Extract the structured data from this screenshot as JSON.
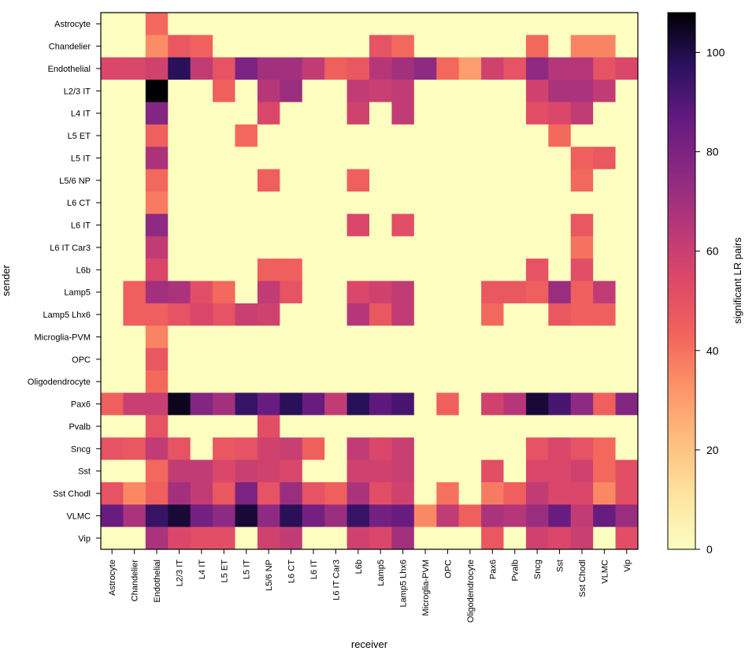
{
  "chart_data": {
    "type": "heatmap",
    "xlabel": "receiver",
    "ylabel": "sender",
    "colorbar_label": "significant LR pairs",
    "colorbar_ticks": [
      0,
      20,
      40,
      60,
      80,
      100
    ],
    "vmin": 0,
    "vmax": 108,
    "colormap": "magma_r",
    "columns": [
      "Astrocyte",
      "Chandelier",
      "Endothelial",
      "L2/3 IT",
      "L4 IT",
      "L5 ET",
      "L5 IT",
      "L5/6 NP",
      "L6 CT",
      "L6 IT",
      "L6 IT Car3",
      "L6b",
      "Lamp5",
      "Lamp5 Lhx6",
      "Microglia-PVM",
      "OPC",
      "Oligodendrocyte",
      "Pax6",
      "Pvalb",
      "Sncg",
      "Sst",
      "Sst Chodl",
      "VLMC",
      "Vip"
    ],
    "rows": [
      "Astrocyte",
      "Chandelier",
      "Endothelial",
      "L2/3 IT",
      "L4 IT",
      "L5 ET",
      "L5 IT",
      "L5/6 NP",
      "L6 CT",
      "L6 IT",
      "L6 IT Car3",
      "L6b",
      "Lamp5",
      "Lamp5 Lhx6",
      "Microglia-PVM",
      "OPC",
      "Oligodendrocyte",
      "Pax6",
      "Pvalb",
      "Sncg",
      "Sst",
      "Sst Chodl",
      "VLMC",
      "Vip"
    ],
    "values": [
      [
        0,
        0,
        42,
        0,
        0,
        0,
        0,
        0,
        0,
        0,
        0,
        0,
        0,
        0,
        0,
        0,
        0,
        0,
        0,
        0,
        0,
        0,
        0,
        0
      ],
      [
        0,
        0,
        34,
        48,
        44,
        0,
        0,
        0,
        0,
        0,
        0,
        0,
        50,
        42,
        0,
        0,
        0,
        0,
        0,
        42,
        0,
        36,
        36,
        0
      ],
      [
        55,
        55,
        58,
        98,
        62,
        50,
        80,
        70,
        70,
        62,
        45,
        48,
        65,
        70,
        75,
        42,
        30,
        58,
        50,
        75,
        65,
        65,
        50,
        55
      ],
      [
        0,
        0,
        108,
        0,
        0,
        45,
        0,
        65,
        72,
        0,
        0,
        62,
        60,
        62,
        0,
        0,
        0,
        0,
        0,
        58,
        68,
        68,
        62,
        0
      ],
      [
        0,
        0,
        78,
        0,
        0,
        0,
        0,
        55,
        0,
        0,
        0,
        58,
        0,
        62,
        0,
        0,
        0,
        0,
        0,
        52,
        55,
        62,
        0,
        0
      ],
      [
        0,
        0,
        45,
        0,
        0,
        0,
        42,
        0,
        0,
        0,
        0,
        0,
        0,
        0,
        0,
        0,
        0,
        0,
        0,
        0,
        42,
        0,
        0,
        0
      ],
      [
        0,
        0,
        68,
        0,
        0,
        0,
        0,
        0,
        0,
        0,
        0,
        0,
        0,
        0,
        0,
        0,
        0,
        0,
        0,
        0,
        0,
        45,
        48,
        0
      ],
      [
        0,
        0,
        42,
        0,
        0,
        0,
        0,
        45,
        0,
        0,
        0,
        45,
        0,
        0,
        0,
        0,
        0,
        0,
        0,
        0,
        0,
        42,
        0,
        0
      ],
      [
        0,
        0,
        38,
        0,
        0,
        0,
        0,
        0,
        0,
        0,
        0,
        0,
        0,
        0,
        0,
        0,
        0,
        0,
        0,
        0,
        0,
        0,
        0,
        0
      ],
      [
        0,
        0,
        75,
        0,
        0,
        0,
        0,
        0,
        0,
        0,
        0,
        55,
        0,
        52,
        0,
        0,
        0,
        0,
        0,
        0,
        0,
        48,
        0,
        0
      ],
      [
        0,
        0,
        62,
        0,
        0,
        0,
        0,
        0,
        0,
        0,
        0,
        0,
        0,
        0,
        0,
        0,
        0,
        0,
        0,
        0,
        0,
        40,
        0,
        0
      ],
      [
        0,
        0,
        55,
        0,
        0,
        0,
        0,
        45,
        45,
        0,
        0,
        0,
        0,
        0,
        0,
        0,
        0,
        0,
        0,
        50,
        0,
        52,
        0,
        0
      ],
      [
        0,
        45,
        70,
        68,
        52,
        42,
        0,
        62,
        50,
        0,
        0,
        55,
        58,
        62,
        0,
        0,
        0,
        48,
        48,
        45,
        72,
        45,
        62,
        0
      ],
      [
        0,
        45,
        45,
        50,
        55,
        50,
        60,
        58,
        0,
        0,
        0,
        65,
        48,
        62,
        0,
        0,
        0,
        42,
        0,
        0,
        48,
        45,
        45,
        0
      ],
      [
        0,
        0,
        36,
        0,
        0,
        0,
        0,
        0,
        0,
        0,
        0,
        0,
        0,
        0,
        0,
        0,
        0,
        0,
        0,
        0,
        0,
        0,
        0,
        0
      ],
      [
        0,
        0,
        48,
        0,
        0,
        0,
        0,
        0,
        0,
        0,
        0,
        0,
        0,
        0,
        0,
        0,
        0,
        0,
        0,
        0,
        0,
        0,
        0,
        0
      ],
      [
        0,
        0,
        42,
        0,
        0,
        0,
        0,
        0,
        0,
        0,
        0,
        0,
        0,
        0,
        0,
        0,
        0,
        0,
        0,
        0,
        0,
        0,
        0,
        0
      ],
      [
        45,
        60,
        60,
        105,
        78,
        70,
        95,
        85,
        98,
        85,
        62,
        98,
        88,
        92,
        0,
        45,
        0,
        58,
        65,
        102,
        92,
        75,
        45,
        78
      ],
      [
        0,
        0,
        50,
        0,
        0,
        0,
        0,
        52,
        0,
        0,
        0,
        0,
        0,
        0,
        0,
        0,
        0,
        0,
        0,
        0,
        0,
        0,
        0,
        0
      ],
      [
        50,
        48,
        62,
        50,
        0,
        48,
        50,
        58,
        60,
        45,
        0,
        62,
        55,
        60,
        0,
        0,
        0,
        0,
        0,
        50,
        55,
        50,
        42,
        0
      ],
      [
        0,
        0,
        42,
        62,
        62,
        55,
        60,
        58,
        55,
        0,
        0,
        58,
        58,
        60,
        0,
        0,
        0,
        52,
        0,
        55,
        55,
        58,
        42,
        52
      ],
      [
        50,
        35,
        45,
        70,
        62,
        48,
        80,
        50,
        72,
        50,
        45,
        68,
        52,
        58,
        0,
        40,
        0,
        38,
        45,
        62,
        55,
        55,
        35,
        52
      ],
      [
        85,
        68,
        95,
        102,
        82,
        75,
        102,
        75,
        98,
        82,
        72,
        95,
        82,
        85,
        35,
        62,
        45,
        68,
        65,
        72,
        85,
        62,
        85,
        72
      ],
      [
        0,
        0,
        68,
        55,
        52,
        52,
        0,
        58,
        62,
        0,
        0,
        58,
        55,
        70,
        0,
        0,
        0,
        48,
        0,
        58,
        55,
        60,
        0,
        52
      ]
    ]
  }
}
